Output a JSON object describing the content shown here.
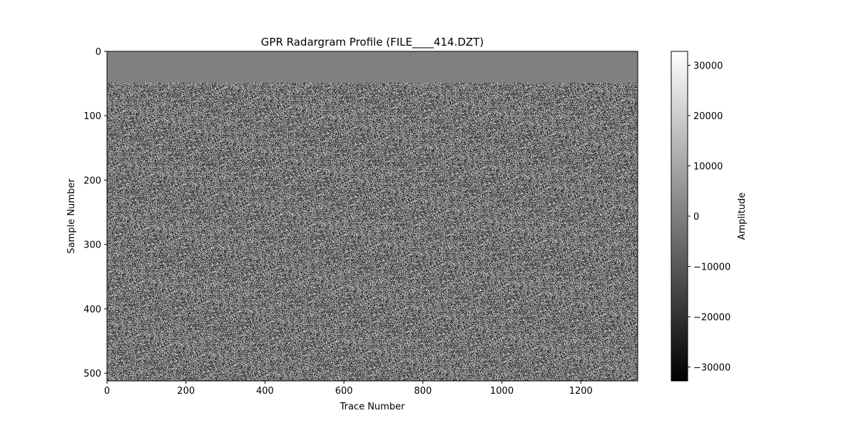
{
  "chart_data": {
    "type": "heatmap",
    "title": "GPR Radargram Profile (FILE____414.DZT)",
    "xlabel": "Trace Number",
    "ylabel": "Sample Number",
    "xlim": [
      0,
      1344
    ],
    "ylim": [
      512,
      0
    ],
    "x_ticks": [
      0,
      200,
      400,
      600,
      800,
      1000,
      1200
    ],
    "y_ticks": [
      0,
      100,
      200,
      300,
      400,
      500
    ],
    "colormap": "gray",
    "colorbar": {
      "label": "Amplitude",
      "range": [
        -32768,
        32767
      ],
      "ticks": [
        30000,
        20000,
        10000,
        0,
        -10000,
        -20000,
        -30000
      ],
      "tick_labels": [
        "30000",
        "20000",
        "10000",
        "0",
        "−10000",
        "−20000",
        "−30000"
      ]
    },
    "description_of_values": "Top band (samples 0–48) near-constant amplitude ≈ 0; below, random noise-like amplitudes spanning roughly −20000 to 20000",
    "flat_band_end_sample": 48,
    "grid": false
  }
}
